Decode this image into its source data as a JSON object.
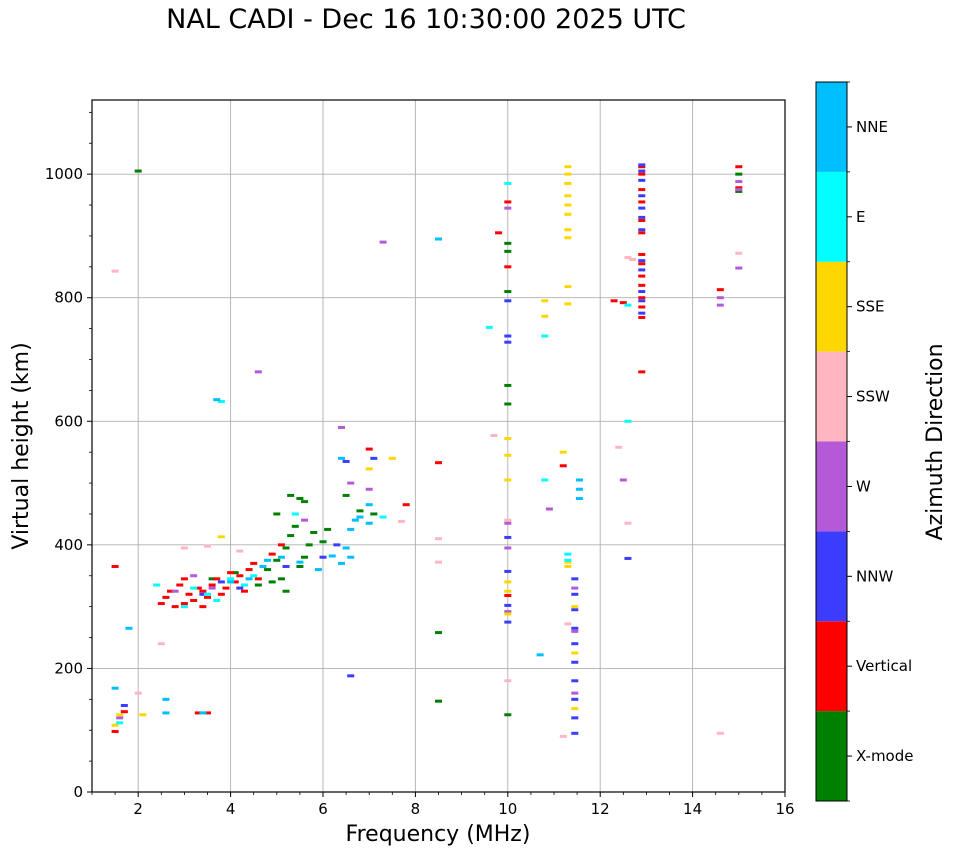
{
  "chart_data": {
    "type": "scatter",
    "title": "NAL CADI - Dec 16 10:30:00 2025 UTC",
    "xlabel": "Frequency (MHz)",
    "ylabel": "Virtual height (km)",
    "xlim": [
      1,
      16
    ],
    "ylim": [
      0,
      1120
    ],
    "xticks": [
      2,
      4,
      6,
      8,
      10,
      12,
      14,
      16
    ],
    "yticks": [
      0,
      200,
      400,
      600,
      800,
      1000
    ],
    "grid": true,
    "colorbar": {
      "label": "Azimuth Direction",
      "categories": [
        {
          "name": "X-mode",
          "color": "#008000"
        },
        {
          "name": "Vertical",
          "color": "#ff0000"
        },
        {
          "name": "NNW",
          "color": "#3c3cff"
        },
        {
          "name": "W",
          "color": "#b45ad8"
        },
        {
          "name": "SSW",
          "color": "#ffb6c1"
        },
        {
          "name": "SSE",
          "color": "#ffd700"
        },
        {
          "name": "E",
          "color": "#00ffff"
        },
        {
          "name": "NNE",
          "color": "#00bfff"
        }
      ]
    },
    "series": [
      {
        "name": "X-mode",
        "color": "#008000",
        "points": [
          [
            2.0,
            1005
          ],
          [
            10.0,
            888
          ],
          [
            10.0,
            875
          ],
          [
            10.0,
            810
          ],
          [
            10.0,
            658
          ],
          [
            10.0,
            628
          ],
          [
            10.0,
            125
          ],
          [
            15.0,
            1000
          ],
          [
            15.0,
            972
          ],
          [
            8.5,
            258
          ],
          [
            8.5,
            147
          ],
          [
            4.6,
            335
          ],
          [
            4.8,
            360
          ],
          [
            5.0,
            375
          ],
          [
            5.1,
            345
          ],
          [
            5.2,
            395
          ],
          [
            5.3,
            415
          ],
          [
            5.4,
            430
          ],
          [
            5.5,
            365
          ],
          [
            5.6,
            380
          ],
          [
            5.7,
            400
          ],
          [
            5.8,
            420
          ],
          [
            6.0,
            405
          ],
          [
            6.1,
            425
          ],
          [
            6.5,
            480
          ],
          [
            6.8,
            455
          ],
          [
            7.1,
            450
          ],
          [
            5.3,
            480
          ],
          [
            5.5,
            475
          ],
          [
            5.2,
            325
          ],
          [
            4.9,
            340
          ],
          [
            5.0,
            450
          ],
          [
            3.6,
            345
          ],
          [
            4.1,
            355
          ],
          [
            5.6,
            470
          ]
        ]
      },
      {
        "name": "Vertical",
        "color": "#ff0000",
        "points": [
          [
            1.5,
            98
          ],
          [
            1.5,
            365
          ],
          [
            1.7,
            130
          ],
          [
            2.5,
            305
          ],
          [
            2.6,
            315
          ],
          [
            2.7,
            325
          ],
          [
            2.8,
            300
          ],
          [
            2.9,
            335
          ],
          [
            3.0,
            345
          ],
          [
            3.1,
            320
          ],
          [
            3.2,
            310
          ],
          [
            3.3,
            330
          ],
          [
            3.4,
            325
          ],
          [
            3.5,
            315
          ],
          [
            3.6,
            335
          ],
          [
            3.7,
            345
          ],
          [
            3.8,
            320
          ],
          [
            3.9,
            330
          ],
          [
            4.0,
            355
          ],
          [
            4.1,
            340
          ],
          [
            4.2,
            350
          ],
          [
            4.3,
            325
          ],
          [
            4.4,
            360
          ],
          [
            4.6,
            345
          ],
          [
            4.9,
            385
          ],
          [
            5.1,
            400
          ],
          [
            3.3,
            128
          ],
          [
            3.5,
            128
          ],
          [
            10.0,
            955
          ],
          [
            10.0,
            850
          ],
          [
            10.0,
            318
          ],
          [
            9.8,
            905
          ],
          [
            8.5,
            533
          ],
          [
            11.2,
            528
          ],
          [
            12.3,
            795
          ],
          [
            12.5,
            792
          ],
          [
            12.9,
            680
          ],
          [
            12.9,
            768
          ],
          [
            12.9,
            785
          ],
          [
            12.9,
            800
          ],
          [
            12.9,
            820
          ],
          [
            12.9,
            835
          ],
          [
            12.9,
            855
          ],
          [
            12.9,
            870
          ],
          [
            12.9,
            905
          ],
          [
            12.9,
            925
          ],
          [
            12.9,
            955
          ],
          [
            12.9,
            975
          ],
          [
            12.9,
            1000
          ],
          [
            12.9,
            1012
          ],
          [
            15.0,
            1012
          ],
          [
            15.0,
            978
          ],
          [
            14.6,
            813
          ],
          [
            3.0,
            305
          ],
          [
            3.4,
            300
          ],
          [
            4.5,
            370
          ],
          [
            7.0,
            555
          ],
          [
            7.8,
            465
          ]
        ]
      },
      {
        "name": "NNW",
        "color": "#3c3cff",
        "points": [
          [
            1.7,
            140
          ],
          [
            3.4,
            320
          ],
          [
            3.8,
            340
          ],
          [
            4.2,
            330
          ],
          [
            6.6,
            188
          ],
          [
            6.5,
            535
          ],
          [
            7.1,
            540
          ],
          [
            10.0,
            795
          ],
          [
            10.0,
            738
          ],
          [
            10.0,
            728
          ],
          [
            10.0,
            412
          ],
          [
            10.0,
            357
          ],
          [
            10.0,
            302
          ],
          [
            10.0,
            275
          ],
          [
            12.6,
            378
          ],
          [
            11.45,
            95
          ],
          [
            11.45,
            120
          ],
          [
            11.45,
            150
          ],
          [
            11.45,
            180
          ],
          [
            11.45,
            210
          ],
          [
            11.45,
            240
          ],
          [
            11.45,
            265
          ],
          [
            11.45,
            295
          ],
          [
            11.45,
            320
          ],
          [
            11.45,
            345
          ],
          [
            12.9,
            910
          ],
          [
            12.9,
            930
          ],
          [
            12.9,
            945
          ],
          [
            12.9,
            965
          ],
          [
            12.9,
            990
          ],
          [
            12.9,
            1005
          ],
          [
            12.9,
            1015
          ],
          [
            12.9,
            775
          ],
          [
            12.9,
            795
          ],
          [
            12.9,
            810
          ],
          [
            12.9,
            845
          ],
          [
            12.9,
            860
          ],
          [
            5.2,
            365
          ],
          [
            6.0,
            380
          ],
          [
            6.3,
            400
          ]
        ]
      },
      {
        "name": "W",
        "color": "#b45ad8",
        "points": [
          [
            1.6,
            120
          ],
          [
            2.8,
            325
          ],
          [
            3.2,
            350
          ],
          [
            3.6,
            330
          ],
          [
            4.6,
            680
          ],
          [
            6.4,
            590
          ],
          [
            6.6,
            500
          ],
          [
            7.3,
            890
          ],
          [
            10.0,
            945
          ],
          [
            10.0,
            435
          ],
          [
            10.0,
            395
          ],
          [
            10.0,
            292
          ],
          [
            10.9,
            458
          ],
          [
            14.6,
            800
          ],
          [
            14.6,
            788
          ],
          [
            15.0,
            848
          ],
          [
            15.0,
            988
          ],
          [
            15.0,
            975
          ],
          [
            11.45,
            160
          ],
          [
            11.45,
            260
          ],
          [
            11.45,
            330
          ],
          [
            7.0,
            490
          ],
          [
            5.6,
            440
          ],
          [
            12.5,
            505
          ]
        ]
      },
      {
        "name": "SSW",
        "color": "#ffb6c1",
        "points": [
          [
            1.5,
            843
          ],
          [
            2.0,
            160
          ],
          [
            2.5,
            240
          ],
          [
            3.0,
            395
          ],
          [
            3.5,
            398
          ],
          [
            9.7,
            577
          ],
          [
            10.0,
            180
          ],
          [
            10.0,
            440
          ],
          [
            8.5,
            410
          ],
          [
            8.5,
            372
          ],
          [
            12.4,
            558
          ],
          [
            12.6,
            435
          ],
          [
            12.6,
            865
          ],
          [
            12.7,
            862
          ],
          [
            14.6,
            95
          ],
          [
            15.0,
            872
          ],
          [
            11.2,
            90
          ],
          [
            11.3,
            272
          ],
          [
            7.7,
            438
          ],
          [
            4.2,
            390
          ]
        ]
      },
      {
        "name": "SSE",
        "color": "#ffd700",
        "points": [
          [
            1.5,
            108
          ],
          [
            1.6,
            125
          ],
          [
            2.1,
            125
          ],
          [
            3.8,
            413
          ],
          [
            7.5,
            540
          ],
          [
            10.0,
            572
          ],
          [
            10.0,
            545
          ],
          [
            10.0,
            505
          ],
          [
            10.0,
            340
          ],
          [
            10.0,
            325
          ],
          [
            10.0,
            288
          ],
          [
            10.8,
            795
          ],
          [
            10.8,
            770
          ],
          [
            11.2,
            550
          ],
          [
            11.3,
            1012
          ],
          [
            11.3,
            1000
          ],
          [
            11.3,
            985
          ],
          [
            11.3,
            965
          ],
          [
            11.3,
            950
          ],
          [
            11.3,
            935
          ],
          [
            11.3,
            910
          ],
          [
            11.3,
            897
          ],
          [
            11.3,
            818
          ],
          [
            11.3,
            790
          ],
          [
            11.3,
            365
          ],
          [
            11.3,
            372
          ],
          [
            11.45,
            135
          ],
          [
            11.45,
            225
          ],
          [
            11.45,
            300
          ],
          [
            7.0,
            523
          ]
        ]
      },
      {
        "name": "E",
        "color": "#00ffff",
        "points": [
          [
            1.6,
            112
          ],
          [
            2.4,
            335
          ],
          [
            3.0,
            300
          ],
          [
            3.2,
            330
          ],
          [
            3.5,
            320
          ],
          [
            3.7,
            310
          ],
          [
            3.8,
            632
          ],
          [
            4.0,
            345
          ],
          [
            4.3,
            335
          ],
          [
            4.5,
            350
          ],
          [
            9.6,
            752
          ],
          [
            10.0,
            985
          ],
          [
            10.8,
            738
          ],
          [
            10.8,
            505
          ],
          [
            11.3,
            385
          ],
          [
            11.3,
            375
          ],
          [
            12.6,
            600
          ],
          [
            12.6,
            788
          ],
          [
            7.3,
            445
          ],
          [
            8.5,
            895
          ],
          [
            5.4,
            450
          ]
        ]
      },
      {
        "name": "NNE",
        "color": "#00bfff",
        "points": [
          [
            1.5,
            168
          ],
          [
            1.8,
            265
          ],
          [
            2.6,
            150
          ],
          [
            2.6,
            128
          ],
          [
            3.4,
            128
          ],
          [
            3.7,
            635
          ],
          [
            4.0,
            340
          ],
          [
            4.4,
            345
          ],
          [
            4.7,
            365
          ],
          [
            4.8,
            375
          ],
          [
            5.1,
            380
          ],
          [
            5.5,
            372
          ],
          [
            5.9,
            360
          ],
          [
            6.2,
            382
          ],
          [
            6.4,
            370
          ],
          [
            6.5,
            395
          ],
          [
            6.6,
            425
          ],
          [
            6.7,
            440
          ],
          [
            6.8,
            445
          ],
          [
            7.0,
            465
          ],
          [
            10.7,
            222
          ],
          [
            11.55,
            475
          ],
          [
            11.55,
            490
          ],
          [
            11.55,
            505
          ],
          [
            6.6,
            380
          ],
          [
            6.4,
            540
          ],
          [
            7.0,
            435
          ],
          [
            8.5,
            895
          ]
        ]
      }
    ]
  }
}
